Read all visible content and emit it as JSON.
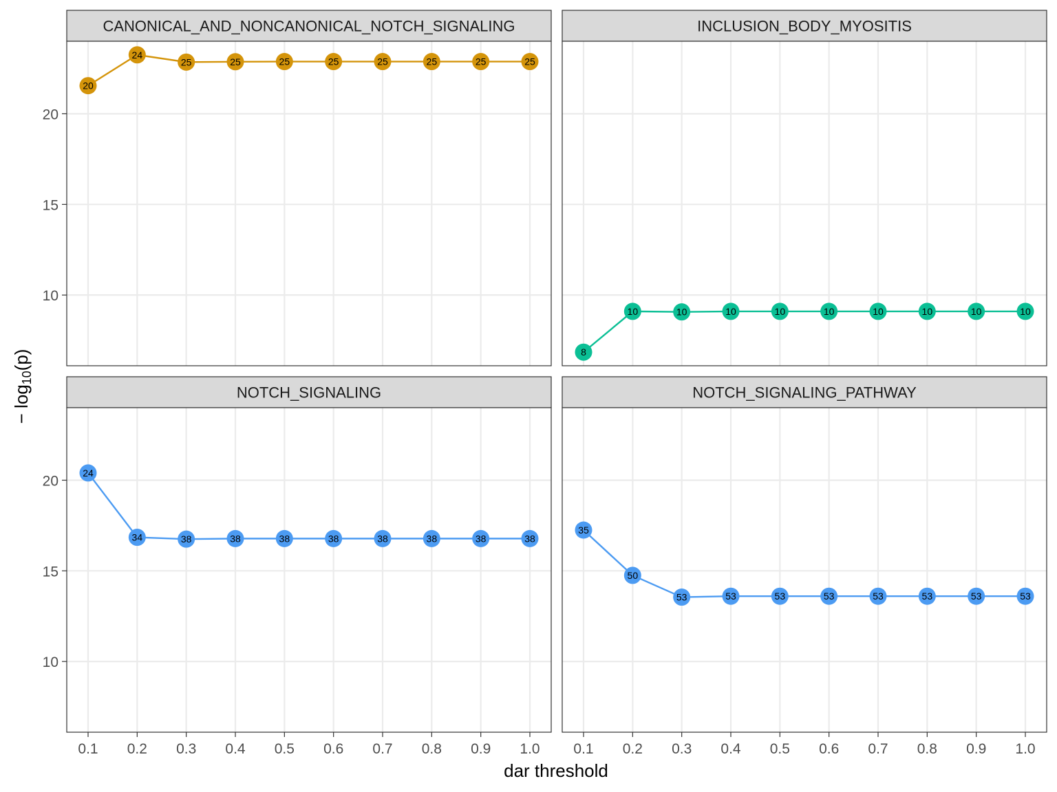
{
  "chart_data": {
    "type": "line",
    "layout": "facet_wrap 2x2, shared axes",
    "xlabel": "dar threshold",
    "ylabel_parts": {
      "prefix": "− log",
      "subscript": "10",
      "suffix": "(p)"
    },
    "xlim": [
      0.1,
      1.0
    ],
    "ylim": [
      6.1,
      24
    ],
    "grid": true,
    "x_ticks": [
      0.1,
      0.2,
      0.3,
      0.4,
      0.5,
      0.6,
      0.7,
      0.8,
      0.9,
      1.0
    ],
    "x_tick_labels": [
      "0.1",
      "0.2",
      "0.3",
      "0.4",
      "0.5",
      "0.6",
      "0.7",
      "0.8",
      "0.9",
      "1.0"
    ],
    "y_ticks": [
      10,
      15,
      20
    ],
    "y_tick_labels": [
      "10",
      "15",
      "20"
    ],
    "x": [
      0.1,
      0.2,
      0.3,
      0.4,
      0.5,
      0.6,
      0.7,
      0.8,
      0.9,
      1.0
    ],
    "panels": [
      {
        "title": "CANONICAL_AND_NONCANONICAL_NOTCH_SIGNALING",
        "color": "#D4940A",
        "y": [
          21.55,
          23.25,
          22.85,
          22.87,
          22.88,
          22.88,
          22.88,
          22.88,
          22.88,
          22.88
        ],
        "labels": [
          "20",
          "24",
          "25",
          "25",
          "25",
          "25",
          "25",
          "25",
          "25",
          "25"
        ]
      },
      {
        "title": "INCLUSION_BODY_MYOSITIS",
        "color": "#0BBF95",
        "y": [
          6.85,
          9.1,
          9.07,
          9.1,
          9.1,
          9.1,
          9.1,
          9.1,
          9.1,
          9.1
        ],
        "labels": [
          "8",
          "10",
          "10",
          "10",
          "10",
          "10",
          "10",
          "10",
          "10",
          "10"
        ]
      },
      {
        "title": "NOTCH_SIGNALING",
        "color": "#4C9BF2",
        "y": [
          20.4,
          16.85,
          16.75,
          16.78,
          16.78,
          16.78,
          16.78,
          16.78,
          16.78,
          16.78
        ],
        "labels": [
          "24",
          "34",
          "38",
          "38",
          "38",
          "38",
          "38",
          "38",
          "38",
          "38"
        ]
      },
      {
        "title": "NOTCH_SIGNALING_PATHWAY",
        "color": "#4C9BF2",
        "y": [
          17.25,
          14.75,
          13.55,
          13.6,
          13.6,
          13.6,
          13.6,
          13.6,
          13.6,
          13.6
        ],
        "labels": [
          "35",
          "50",
          "53",
          "53",
          "53",
          "53",
          "53",
          "53",
          "53",
          "53"
        ]
      }
    ]
  }
}
